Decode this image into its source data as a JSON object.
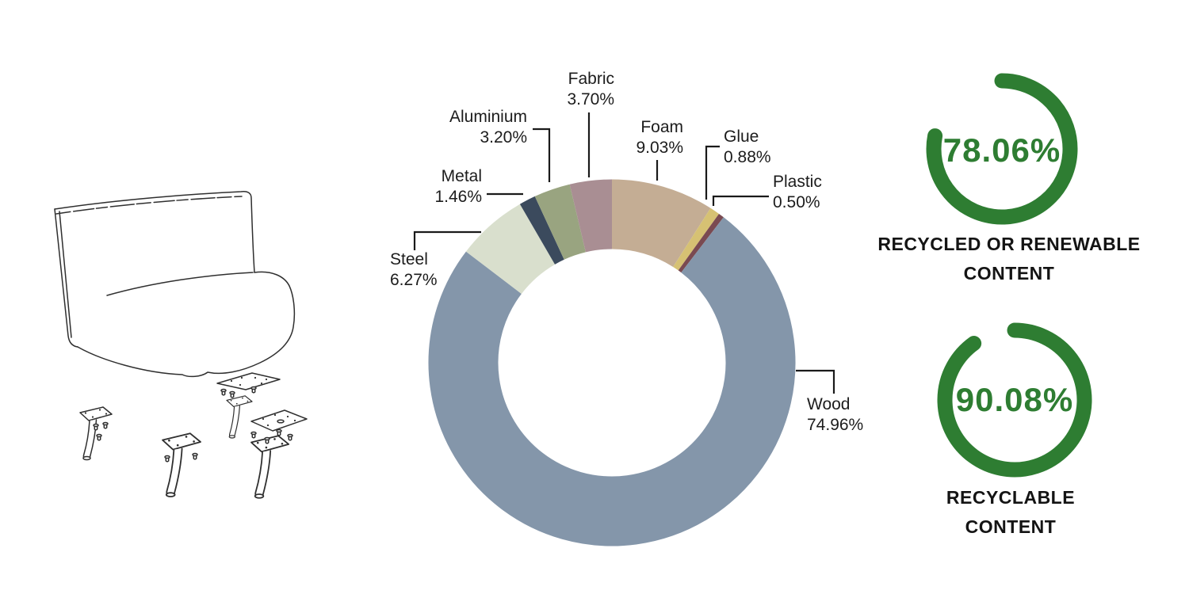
{
  "chart_data": [
    {
      "type": "pie",
      "variant": "donut",
      "unit": "%",
      "order": "clockwise-from-top",
      "inner_radius_ratio": 0.62,
      "legend": "off",
      "segments": [
        {
          "label": "Foam",
          "value": 9.03,
          "pct_label": "9.03%",
          "color": "#c4ad94"
        },
        {
          "label": "Glue",
          "value": 0.88,
          "pct_label": "0.88%",
          "color": "#d6c173"
        },
        {
          "label": "Plastic",
          "value": 0.5,
          "pct_label": "0.50%",
          "color": "#7a4a51"
        },
        {
          "label": "Wood",
          "value": 74.96,
          "pct_label": "74.96%",
          "color": "#8496aa"
        },
        {
          "label": "Steel",
          "value": 6.27,
          "pct_label": "6.27%",
          "color": "#d9dfcd"
        },
        {
          "label": "Metal",
          "value": 1.46,
          "pct_label": "1.46%",
          "color": "#3b4a5d"
        },
        {
          "label": "Aluminium",
          "value": 3.2,
          "pct_label": "3.20%",
          "color": "#99a480"
        },
        {
          "label": "Fabric",
          "value": 3.7,
          "pct_label": "3.70%",
          "color": "#a98e93"
        }
      ]
    },
    {
      "type": "pie",
      "variant": "gauge",
      "value": 78.06,
      "max": 100,
      "value_label": "78.06%",
      "caption_lines": [
        "RECYCLED OR RENEWABLE",
        "CONTENT"
      ],
      "color": "#2e7d32"
    },
    {
      "type": "pie",
      "variant": "gauge",
      "value": 90.08,
      "max": 100,
      "value_label": "90.08%",
      "caption_lines": [
        "RECYCLABLE",
        "CONTENT"
      ],
      "color": "#2e7d32"
    }
  ]
}
